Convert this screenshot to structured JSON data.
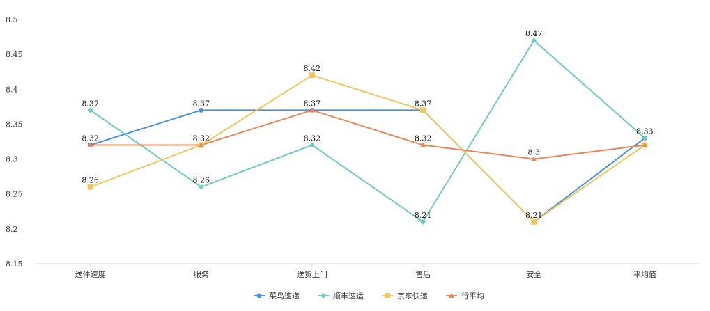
{
  "chart_data": {
    "type": "line",
    "categories": [
      "送件速度",
      "服务",
      "送货上门",
      "售后",
      "安全",
      "平均值"
    ],
    "ylim": [
      8.15,
      8.5
    ],
    "yticks": [
      "8.15",
      "8.2",
      "8.25",
      "8.3",
      "8.35",
      "8.4",
      "8.45",
      "8.5"
    ],
    "grid": false,
    "legend_position": "bottom",
    "series": [
      {
        "name": "菜鸟速递",
        "color": "#4a90d9",
        "marker": "circle",
        "values": [
          8.32,
          8.37,
          8.37,
          8.37,
          8.21,
          8.33
        ]
      },
      {
        "name": "顺丰速运",
        "color": "#6fcac4",
        "marker": "diamond",
        "values": [
          8.37,
          8.26,
          8.32,
          8.21,
          8.47,
          8.33
        ]
      },
      {
        "name": "京东快递",
        "color": "#f0c75e",
        "marker": "square",
        "values": [
          8.26,
          8.32,
          8.42,
          8.37,
          8.21,
          8.32
        ]
      },
      {
        "name": "行平均",
        "color": "#e8875a",
        "marker": "triangle",
        "values": [
          8.32,
          8.32,
          8.37,
          8.32,
          8.3,
          8.32
        ]
      }
    ],
    "data_labels": [
      [
        "8.37",
        "8.32",
        "8.26"
      ],
      [
        "8.37",
        "8.32",
        "8.26"
      ],
      [
        "8.42",
        "8.37",
        "8.32"
      ],
      [
        "8.37",
        "8.32",
        "8.21"
      ],
      [
        "8.47",
        "8.3",
        "8.21"
      ],
      [
        "8.33"
      ]
    ]
  }
}
